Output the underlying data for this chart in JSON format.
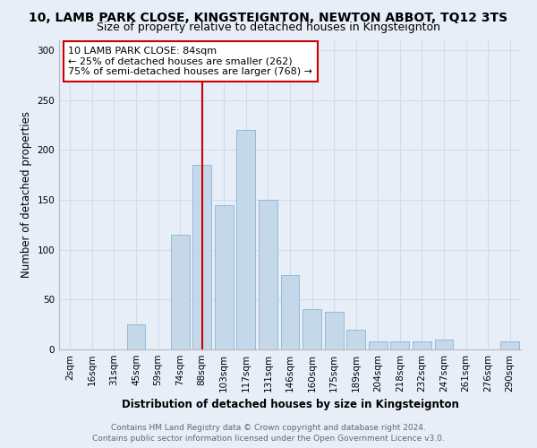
{
  "title": "10, LAMB PARK CLOSE, KINGSTEIGNTON, NEWTON ABBOT, TQ12 3TS",
  "subtitle": "Size of property relative to detached houses in Kingsteignton",
  "xlabel": "Distribution of detached houses by size in Kingsteignton",
  "ylabel": "Number of detached properties",
  "bar_labels": [
    "2sqm",
    "16sqm",
    "31sqm",
    "45sqm",
    "59sqm",
    "74sqm",
    "88sqm",
    "103sqm",
    "117sqm",
    "131sqm",
    "146sqm",
    "160sqm",
    "175sqm",
    "189sqm",
    "204sqm",
    "218sqm",
    "232sqm",
    "247sqm",
    "261sqm",
    "276sqm",
    "290sqm"
  ],
  "bar_values": [
    0,
    0,
    0,
    25,
    0,
    115,
    185,
    145,
    220,
    150,
    75,
    40,
    38,
    20,
    8,
    8,
    8,
    10,
    0,
    0,
    8
  ],
  "bar_color": "#c5d8ea",
  "bar_edge_color": "#8ab4d4",
  "ylim": [
    0,
    310
  ],
  "yticks": [
    0,
    50,
    100,
    150,
    200,
    250,
    300
  ],
  "property_label": "10 LAMB PARK CLOSE: 84sqm",
  "annotation_line1": "← 25% of detached houses are smaller (262)",
  "annotation_line2": "75% of semi-detached houses are larger (768) →",
  "vline_x_index": 6,
  "vline_color": "#cc0000",
  "annotation_box_color": "#ffffff",
  "annotation_box_edge_color": "#cc0000",
  "grid_color": "#d0dcea",
  "background_color": "#e8eef8",
  "footer_line1": "Contains HM Land Registry data © Crown copyright and database right 2024.",
  "footer_line2": "Contains public sector information licensed under the Open Government Licence v3.0.",
  "title_fontsize": 10,
  "subtitle_fontsize": 9,
  "axis_label_fontsize": 8.5,
  "tick_fontsize": 7.5,
  "annotation_fontsize": 8,
  "footer_fontsize": 6.5
}
